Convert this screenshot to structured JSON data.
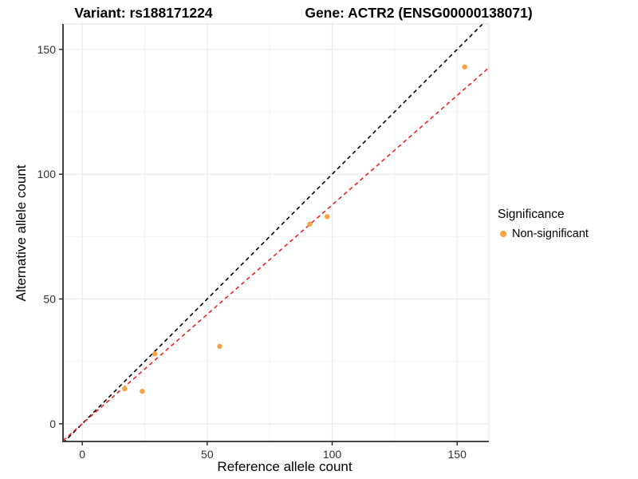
{
  "titles": {
    "variant": "Variant: rs188171224",
    "gene": "Gene: ACTR2 (ENSG00000138071)"
  },
  "axes": {
    "x_label": "Reference allele count",
    "y_label": "Alternative allele count"
  },
  "legend": {
    "title": "Significance",
    "items": [
      {
        "label": "Non-significant",
        "color": "#F9A242"
      }
    ]
  },
  "colors": {
    "background": "#FFFFFF",
    "point": "#F9A242",
    "identity_line": "#000000",
    "fit_line": "#ED2224",
    "grid_major": "#E9E9E9",
    "grid_minor": "#F4F4F4",
    "panel_border": "#E0E0E0",
    "axis_line": "#2B2B2B",
    "tick_label": "#303030"
  },
  "chart_data": {
    "type": "scatter",
    "title": "Variant: rs188171224 / Gene: ACTR2 (ENSG00000138071)",
    "xlabel": "Reference allele count",
    "ylabel": "Alternative allele count",
    "series": [
      {
        "name": "Non-significant",
        "color": "#F9A242",
        "points": [
          [
            17,
            14
          ],
          [
            24,
            13
          ],
          [
            29,
            28
          ],
          [
            55,
            31
          ],
          [
            91,
            80
          ],
          [
            98,
            83
          ],
          [
            153,
            143
          ]
        ]
      }
    ],
    "lines": [
      {
        "name": "identity",
        "slope": 1,
        "intercept": 0,
        "color": "#000000",
        "style": "dashed"
      },
      {
        "name": "fit",
        "slope": 0.877,
        "intercept": 0,
        "color": "#ED2224",
        "style": "dashed"
      }
    ],
    "xlim": [
      -7.7,
      162.7
    ],
    "ylim": [
      -7.1,
      160.2
    ],
    "xticks": [
      0,
      50,
      100,
      150
    ],
    "yticks": [
      0,
      50,
      100,
      150
    ],
    "xticks_minor": [
      25,
      75,
      125
    ],
    "yticks_minor": [
      25,
      75,
      125
    ],
    "grid": true,
    "legend_position": "right"
  }
}
